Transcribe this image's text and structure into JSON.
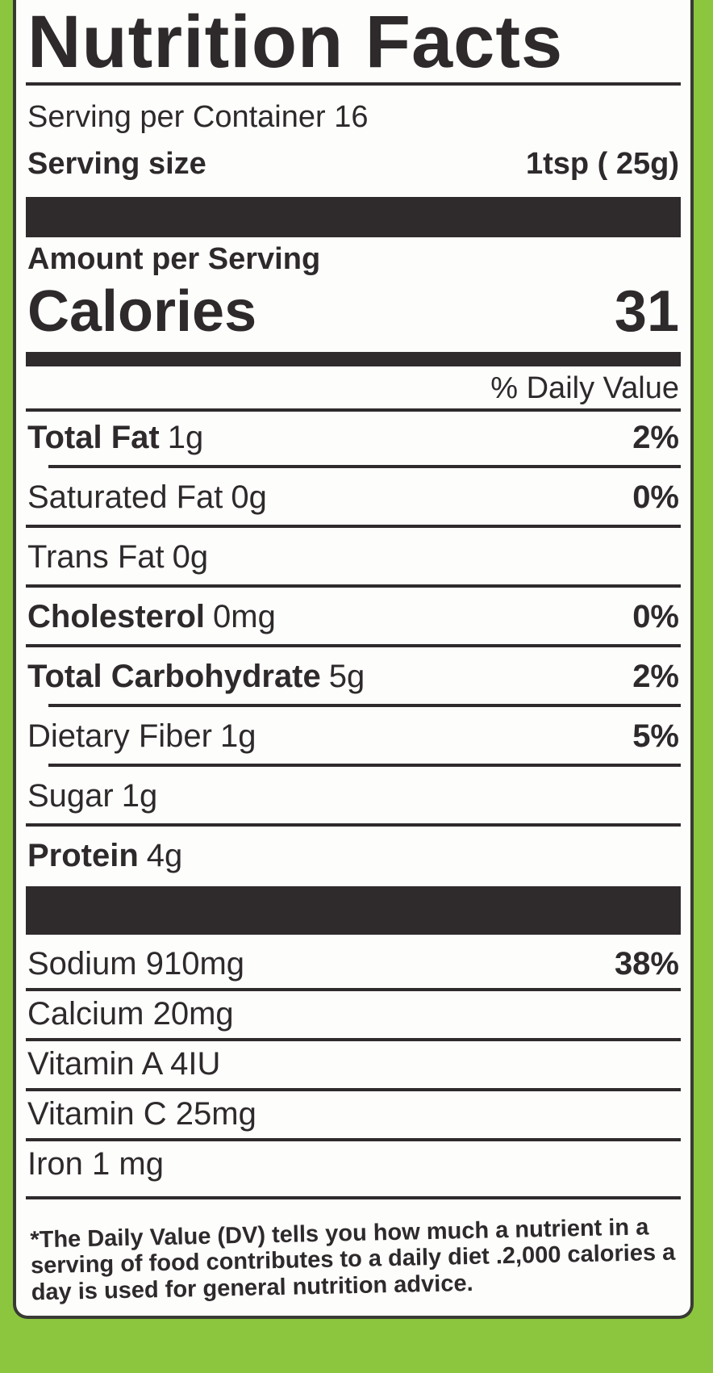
{
  "title": "Nutrition Facts",
  "servings_per_container": "Serving per Container 16",
  "serving_size_label": "Serving size",
  "serving_size_value": "1tsp ( 25g)",
  "amount_per_serving": "Amount per Serving",
  "calories_label": "Calories",
  "calories_value": "31",
  "daily_value_header": "% Daily Value",
  "nutrients": [
    {
      "name": "Total Fat",
      "amount": "1g",
      "dv": "2%"
    },
    {
      "name": "Saturated Fat",
      "amount": "0g",
      "dv": "0%"
    },
    {
      "name": "Trans Fat",
      "amount": "0g",
      "dv": ""
    },
    {
      "name": "Cholesterol",
      "amount": "0mg",
      "dv": "0%"
    },
    {
      "name": "Total Carbohydrate",
      "amount": "5g",
      "dv": "2%"
    },
    {
      "name": "Dietary Fiber",
      "amount": "1g",
      "dv": "5%"
    },
    {
      "name": "Sugar",
      "amount": "1g",
      "dv": ""
    },
    {
      "name": "Protein",
      "amount": "4g",
      "dv": ""
    }
  ],
  "minerals": [
    {
      "name": "Sodium 910mg",
      "dv": "38%"
    },
    {
      "name": "Calcium 20mg",
      "dv": ""
    },
    {
      "name": "Vitamin A 4IU",
      "dv": ""
    },
    {
      "name": "Vitamin C 25mg",
      "dv": ""
    },
    {
      "name": "Iron 1 mg",
      "dv": ""
    }
  ],
  "footnote": "*The Daily Value (DV) tells you how much a nutrient in a serving of food contributes to a daily diet .2,000 calories a day is used for general nutrition advice.",
  "colors": {
    "background": "#8cc63e",
    "ink": "#2e2a2c",
    "label": "#fdfdfb"
  }
}
